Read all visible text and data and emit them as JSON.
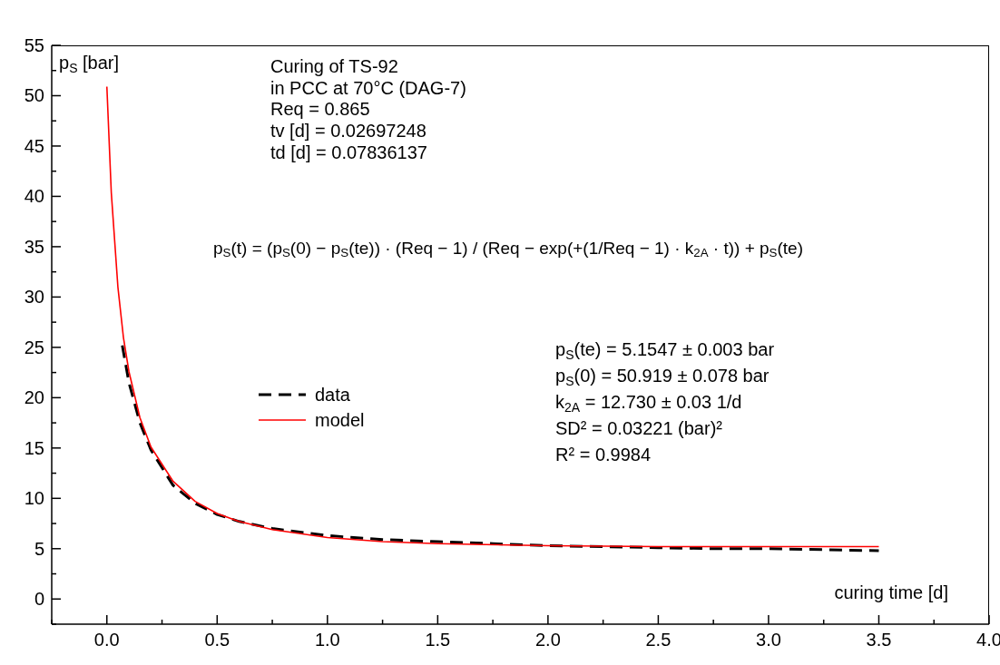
{
  "chart_data": {
    "type": "line",
    "ylabel": "p$_{S}$ [bar]",
    "xlabel": "curing time [d]",
    "annotations": [
      "Curing of TS-92",
      "in PCC at 70°C (DAG-7)",
      "Req = 0.865",
      "tv [d] = 0.02697248",
      "td [d] = 0.07836137",
      "p$_{S}$(t) = (p$_{S}$(0) − p$_{S}$(te)) · (Req − 1) / (Req − exp(+(1/Req − 1) · k$_{2A}$ · t)) + p$_{S}$(te)",
      "p$_{S}$(te) = 5.1547 ± 0.003 bar",
      "p$_{S}$(0) = 50.919 ± 0.078 bar",
      "k$_{2A}$ = 12.730 ± 0.03 1/d",
      "SD² = 0.03221 (bar)²",
      "R² = 0.9984"
    ],
    "series": [
      {
        "name": "data",
        "color": "#000000",
        "line_style": "dashed",
        "x": [
          0.07,
          0.1,
          0.15,
          0.2,
          0.3,
          0.4,
          0.5,
          0.6,
          0.75,
          1.0,
          1.25,
          1.5,
          1.75,
          2.0,
          2.25,
          2.5,
          2.75,
          3.0,
          3.25,
          3.5
        ],
        "values": [
          25.2,
          21.5,
          17.5,
          14.8,
          11.3,
          9.5,
          8.4,
          7.7,
          7.0,
          6.3,
          5.9,
          5.7,
          5.5,
          5.3,
          5.2,
          5.1,
          5.0,
          5.0,
          4.9,
          4.8
        ]
      },
      {
        "name": "model",
        "color": "#ff0000",
        "line_style": "solid",
        "x": [
          0,
          0.02,
          0.05,
          0.075,
          0.1,
          0.15,
          0.2,
          0.3,
          0.4,
          0.5,
          0.6,
          0.75,
          1.0,
          1.25,
          1.5,
          2.0,
          2.5,
          3.0,
          3.5
        ],
        "values": [
          50.9,
          40.4,
          31.0,
          26.0,
          22.6,
          18.0,
          15.1,
          11.7,
          9.7,
          8.5,
          7.7,
          6.9,
          6.1,
          5.7,
          5.5,
          5.3,
          5.2,
          5.2,
          5.2
        ]
      }
    ],
    "xlim": [
      -0.25,
      4.0
    ],
    "xticks": [
      {
        "value": -0.25,
        "label": null
      },
      {
        "value": 0,
        "label": "0.0"
      },
      {
        "value": 0.25,
        "label": null
      },
      {
        "value": 0.5,
        "label": "0.5"
      },
      {
        "value": 0.75,
        "label": null
      },
      {
        "value": 1,
        "label": "1.0"
      },
      {
        "value": 1.25,
        "label": null
      },
      {
        "value": 1.5,
        "label": "1.5"
      },
      {
        "value": 1.75,
        "label": null
      },
      {
        "value": 2,
        "label": "2.0"
      },
      {
        "value": 2.25,
        "label": null
      },
      {
        "value": 2.5,
        "label": "2.5"
      },
      {
        "value": 2.75,
        "label": null
      },
      {
        "value": 3,
        "label": "3.0"
      },
      {
        "value": 3.25,
        "label": null
      },
      {
        "value": 3.5,
        "label": "3.5"
      },
      {
        "value": 3.75,
        "label": null
      },
      {
        "value": 4,
        "label": "4.0"
      }
    ],
    "ylim": [
      -2.5,
      55
    ],
    "yticks": [
      {
        "value": -2.5,
        "label": null
      },
      0,
      {
        "value": 2.5,
        "label": null
      },
      5,
      {
        "value": 7.5,
        "label": null
      },
      10,
      {
        "value": 12.5,
        "label": null
      },
      15,
      {
        "value": 17.5,
        "label": null
      },
      20,
      {
        "value": 22.5,
        "label": null
      },
      25,
      {
        "value": 27.5,
        "label": null
      },
      30,
      {
        "value": 32.5,
        "label": null
      },
      35,
      {
        "value": 37.5,
        "label": null
      },
      40,
      {
        "value": 42.5,
        "label": null
      },
      45,
      {
        "value": 47.5,
        "label": null
      },
      50,
      {
        "value": 52.5,
        "label": null
      },
      55
    ],
    "grid": false,
    "legend": "left",
    "marker": "none"
  }
}
